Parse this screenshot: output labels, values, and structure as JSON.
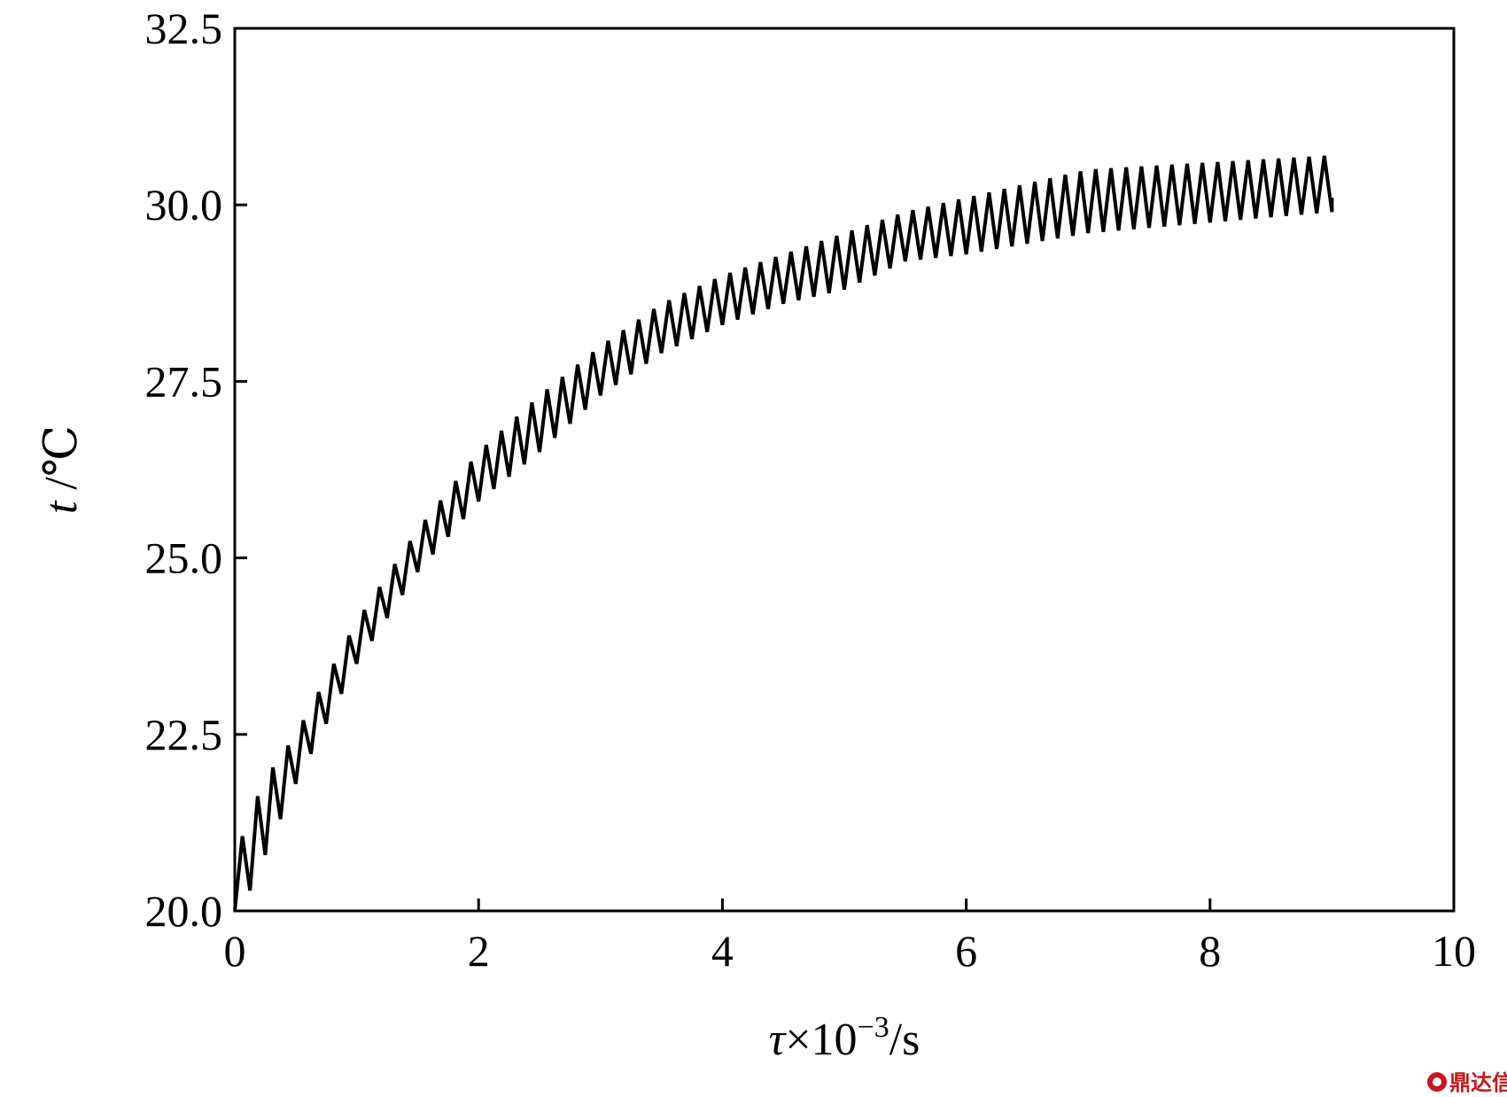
{
  "chart_data": {
    "type": "line",
    "title": "",
    "xlabel": {
      "symbol": "τ",
      "times": "×10",
      "exponent": "−3",
      "unit": "/s"
    },
    "ylabel": {
      "symbol": "t",
      "unit": " /℃"
    },
    "xlim": [
      0,
      10
    ],
    "ylim": [
      20.0,
      32.5
    ],
    "xticks": [
      "0",
      "2",
      "4",
      "6",
      "8",
      "10"
    ],
    "yticks": [
      "20.0",
      "22.5",
      "25.0",
      "27.5",
      "30.0",
      "32.5"
    ],
    "grid": false,
    "legend": "none",
    "line_color": "#000000",
    "series": [
      {
        "style": "sawtooth",
        "x_start": 0.0,
        "x_end": 9.0,
        "period": 0.125,
        "peaks": [
          [
            0.0,
            20.0
          ],
          [
            0.05,
            21.0
          ],
          [
            0.18,
            21.6
          ],
          [
            0.3,
            22.0
          ],
          [
            0.5,
            22.5
          ],
          [
            1.0,
            24.1
          ],
          [
            1.5,
            25.4
          ],
          [
            2.0,
            26.5
          ],
          [
            2.5,
            27.3
          ],
          [
            3.0,
            28.0
          ],
          [
            3.5,
            28.6
          ],
          [
            4.0,
            29.0
          ],
          [
            4.5,
            29.3
          ],
          [
            5.0,
            29.6
          ],
          [
            5.5,
            29.9
          ],
          [
            6.0,
            30.1
          ],
          [
            7.0,
            30.5
          ],
          [
            8.0,
            30.6
          ],
          [
            9.0,
            30.7
          ]
        ],
        "troughs": [
          [
            0.0,
            20.0
          ],
          [
            0.05,
            20.0
          ],
          [
            0.18,
            20.5
          ],
          [
            0.3,
            21.0
          ],
          [
            0.5,
            21.8
          ],
          [
            1.0,
            23.5
          ],
          [
            1.5,
            24.8
          ],
          [
            2.0,
            25.8
          ],
          [
            2.5,
            26.5
          ],
          [
            3.0,
            27.3
          ],
          [
            3.5,
            27.9
          ],
          [
            4.0,
            28.3
          ],
          [
            4.5,
            28.6
          ],
          [
            5.0,
            28.8
          ],
          [
            5.5,
            29.2
          ],
          [
            6.0,
            29.3
          ],
          [
            7.0,
            29.6
          ],
          [
            8.0,
            29.75
          ],
          [
            9.0,
            29.9
          ]
        ],
        "final_value": 30.1
      }
    ]
  },
  "watermark": {
    "text": "鼎达信",
    "color": "#c8161d"
  }
}
